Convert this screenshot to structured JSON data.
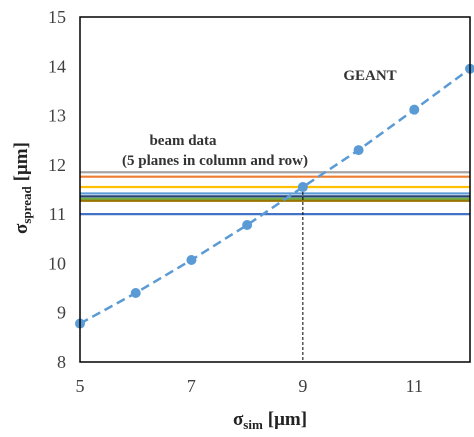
{
  "chart_data": {
    "type": "line",
    "xlabel": {
      "main": "σ",
      "sub": "sim",
      "unit": "[μm]"
    },
    "ylabel": {
      "main": "σ",
      "sub": "spread",
      "unit": "[μm]"
    },
    "xlim": [
      5,
      12
    ],
    "ylim": [
      8,
      15
    ],
    "x_ticks": [
      "5",
      "7",
      "9",
      "11"
    ],
    "y_ticks": [
      "8",
      "9",
      "10",
      "11",
      "12",
      "13",
      "14",
      "15"
    ],
    "grid": false,
    "series": [
      {
        "name": "GEANT",
        "style": "dashed-line-with-markers",
        "color": "#5b9bd5",
        "x": [
          5,
          6,
          7,
          8,
          9,
          10,
          11,
          12
        ],
        "y": [
          8.78,
          9.4,
          10.07,
          10.78,
          11.55,
          12.3,
          13.12,
          13.95
        ]
      }
    ],
    "reference_lines": {
      "label_line1": "beam data",
      "label_line2": "(5 planes in column and row)",
      "lines": [
        {
          "y": 11.85,
          "color": "#a5a5a5"
        },
        {
          "y": 11.76,
          "color": "#ed7d31"
        },
        {
          "y": 11.55,
          "color": "#ffc000"
        },
        {
          "y": 11.42,
          "color": "#5b9bd5"
        },
        {
          "y": 11.36,
          "color": "#264478"
        },
        {
          "y": 11.31,
          "color": "#70ad47"
        },
        {
          "y": 11.27,
          "color": "#997300"
        },
        {
          "y": 11.0,
          "color": "#4472c4"
        }
      ]
    },
    "marker_line": {
      "x": 9,
      "y": 11.55
    }
  }
}
